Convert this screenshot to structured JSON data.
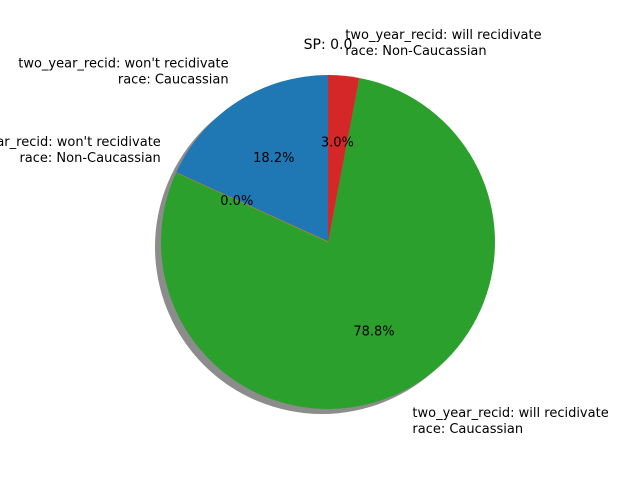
{
  "chart_data": {
    "type": "pie",
    "title": "SP: 0.0",
    "slices": [
      {
        "label_line1": "two_year_recid: won't recidivate",
        "label_line2": "race: Caucassian",
        "value": 18.2,
        "pct_label": "18.2%",
        "color": "#1f77b4"
      },
      {
        "label_line1": "two_year_recid: won't recidivate",
        "label_line2": "race: Non-Caucassian",
        "value": 0.0,
        "pct_label": "0.0%",
        "color": "#ff7f0e"
      },
      {
        "label_line1": "two_year_recid: will recidivate",
        "label_line2": "race: Caucassian",
        "value": 78.8,
        "pct_label": "78.8%",
        "color": "#2ca02c"
      },
      {
        "label_line1": "two_year_recid: will recidivate",
        "label_line2": "race: Non-Caucassian",
        "value": 3.0,
        "pct_label": "3.0%",
        "color": "#d62728"
      }
    ],
    "start_angle_deg": 90,
    "direction": "counterclockwise",
    "shadow": true
  }
}
